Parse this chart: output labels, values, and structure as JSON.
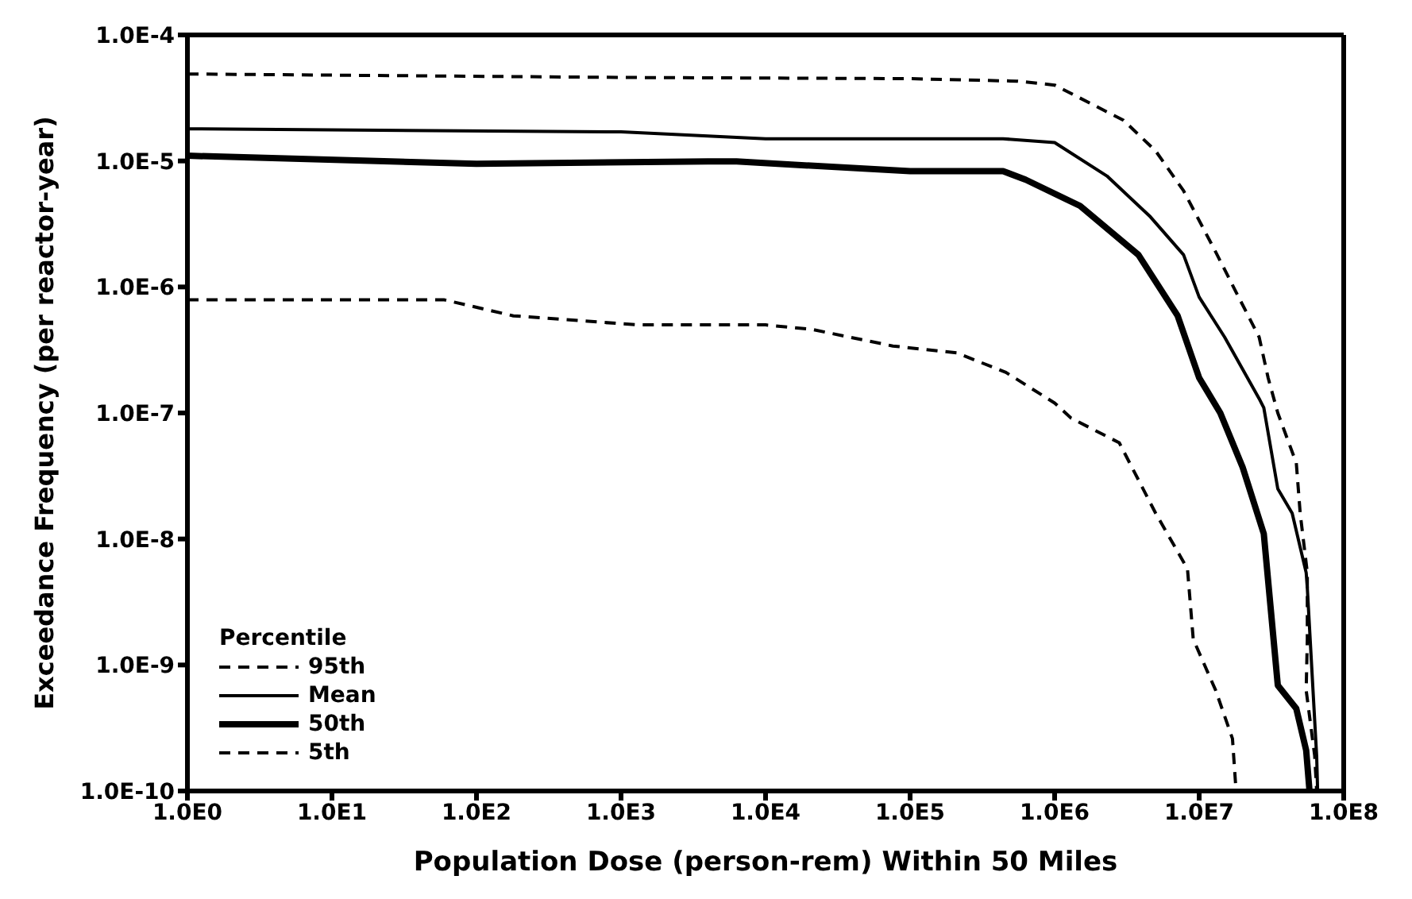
{
  "chart_data": {
    "type": "line",
    "xlabel": "Population Dose (person-rem) Within 50 Miles",
    "ylabel": "Exceedance Frequency (per reactor-year)",
    "legend_title": "Percentile",
    "log": "xy",
    "grid": false,
    "legend": "bottom left",
    "marker": "none",
    "xlim": [
      1,
      100000000
    ],
    "ylim": [
      1e-10,
      0.0001
    ],
    "xticks": [
      {
        "value": 1,
        "label": "1.0E0"
      },
      {
        "value": 10,
        "label": "1.0E1"
      },
      {
        "value": 100,
        "label": "1.0E2"
      },
      {
        "value": 1000,
        "label": "1.0E3"
      },
      {
        "value": 10000,
        "label": "1.0E4"
      },
      {
        "value": 100000,
        "label": "1.0E5"
      },
      {
        "value": 1000000,
        "label": "1.0E6"
      },
      {
        "value": 10000000,
        "label": "1.0E7"
      },
      {
        "value": 100000000,
        "label": "1.0E8"
      }
    ],
    "yticks": [
      {
        "value": 1e-10,
        "label": "1.0E-10"
      },
      {
        "value": 1e-09,
        "label": "1.0E-9"
      },
      {
        "value": 1e-08,
        "label": "1.0E-8"
      },
      {
        "value": 1e-07,
        "label": "1.0E-7"
      },
      {
        "value": 1e-06,
        "label": "1.0E-6"
      },
      {
        "value": 1e-05,
        "label": "1.0E-5"
      },
      {
        "value": 0.0001,
        "label": "1.0E-4"
      }
    ],
    "series": [
      {
        "name": "95th",
        "color": "#000000",
        "line_style": "dashed",
        "x": [
          1,
          1000,
          100000,
          550000,
          1000000,
          3000000,
          5000000,
          7800000,
          13000000,
          18000000,
          26000000,
          30000000,
          35000000,
          47000000,
          50000000,
          56000000,
          56000000,
          55000000,
          63000000,
          65000000
        ],
        "values": [
          4.9e-05,
          4.6e-05,
          4.5e-05,
          4.3e-05,
          4e-05,
          2.1e-05,
          1.2e-05,
          5.8e-06,
          1.9e-06,
          9.1e-07,
          4e-07,
          1.9e-07,
          1e-07,
          4e-08,
          1.6e-08,
          5.4e-09,
          1.6e-09,
          6.3e-10,
          1.9e-10,
          1e-10
        ]
      },
      {
        "name": "Mean",
        "color": "#000000",
        "line_style": "solid",
        "x": [
          1,
          1000,
          10000,
          100000,
          440000,
          1000000,
          2300000,
          4600000,
          7800000,
          10000000,
          15000000,
          26000000,
          28000000,
          35000000,
          44000000,
          55000000,
          56000000,
          65000000,
          66000000
        ],
        "values": [
          1.8e-05,
          1.7e-05,
          1.5e-05,
          1.5e-05,
          1.5e-05,
          1.4e-05,
          7.6e-06,
          3.6e-06,
          1.8e-06,
          8.3e-07,
          4e-07,
          1.3e-07,
          1.1e-07,
          2.5e-08,
          1.6e-08,
          5.4e-09,
          4.1e-09,
          1.9e-10,
          1e-10
        ]
      },
      {
        "name": "50th",
        "color": "#000000",
        "line_style": "solid",
        "x": [
          1,
          100,
          4000,
          6300,
          100000,
          440000,
          630000,
          1500000,
          3800000,
          7100000,
          10000000,
          14000000,
          20000000,
          28000000,
          35000000,
          47000000,
          55000000,
          58000000
        ],
        "values": [
          1.1e-05,
          9.5e-06,
          9.9e-06,
          9.9e-06,
          8.3e-06,
          8.3e-06,
          7.1e-06,
          4.4e-06,
          1.8e-06,
          5.9e-07,
          1.9e-07,
          1e-07,
          3.7e-08,
          1.1e-08,
          6.9e-10,
          4.5e-10,
          2.1e-10,
          1e-10
        ]
      },
      {
        "name": "5th",
        "color": "#000000",
        "line_style": "dashed",
        "x": [
          1,
          60,
          180,
          1300,
          10000,
          21000,
          76000,
          210000,
          460000,
          1000000,
          1300000,
          2800000,
          5000000,
          8300000,
          9100000,
          13000000,
          17000000,
          18000000
        ],
        "values": [
          7.9e-07,
          7.9e-07,
          5.9e-07,
          5e-07,
          5e-07,
          4.6e-07,
          3.4e-07,
          3e-07,
          2.1e-07,
          1.2e-07,
          9.1e-08,
          5.8e-08,
          1.6e-08,
          5.8e-09,
          1.6e-09,
          6.3e-10,
          2.6e-10,
          1e-10
        ]
      }
    ]
  }
}
